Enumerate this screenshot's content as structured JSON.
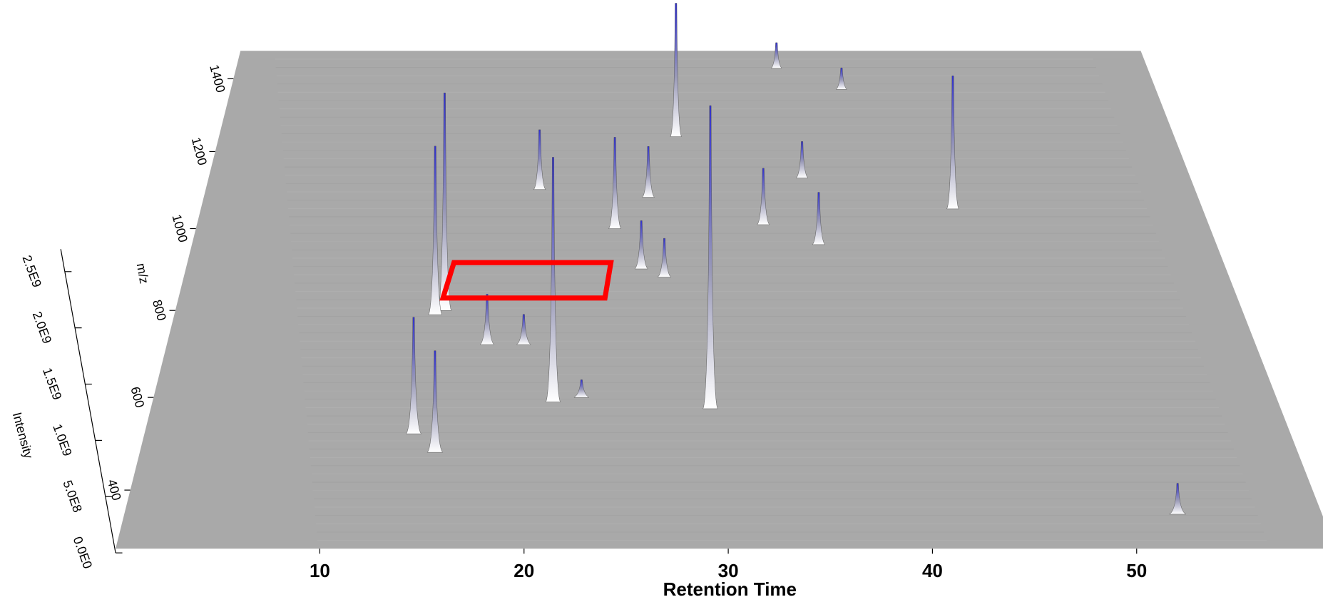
{
  "chart_data": {
    "type": "peaks3d",
    "x_label": "Retention Time",
    "y_label": "m/z",
    "z_label": "Intensity",
    "color": "#2f2fd0",
    "xlim": [
      0,
      59
    ],
    "xticks": [
      10,
      20,
      30,
      40,
      50
    ],
    "ylim": [
      280,
      1480
    ],
    "yticks": [
      400,
      600,
      800,
      1000,
      1200,
      1400
    ],
    "zlim": [
      0,
      2700000000
    ],
    "zticks": [
      {
        "value": 0,
        "label": "0.0E0"
      },
      {
        "value": 500000000,
        "label": "5.0E8"
      },
      {
        "value": 1000000000,
        "label": "1.0E9"
      },
      {
        "value": 1500000000,
        "label": "1.5E9"
      },
      {
        "value": 2000000000,
        "label": "2.0E9"
      },
      {
        "value": 2500000000,
        "label": "2.5E9"
      }
    ],
    "x": [
      28.3,
      29.5,
      21.2,
      15.0,
      14.5,
      14.0,
      15.2,
      44.5,
      24.5,
      26.0,
      27.3,
      36.3,
      35.8,
      35.0,
      39.0,
      33.2,
      26.5,
      20.0,
      52.5,
      22.7,
      17.5,
      19.5
    ],
    "y": [
      1240,
      575,
      590,
      800,
      790,
      520,
      480,
      1050,
      1000,
      900,
      880,
      960,
      1130,
      1430,
      1370,
      1010,
      1080,
      1100,
      350,
      600,
      720,
      720
    ],
    "values": [
      1500000000,
      2900000000,
      2350000000,
      2200000000,
      1700000000,
      1100000000,
      950000000,
      1430000000,
      970000000,
      500000000,
      400000000,
      550000000,
      400000000,
      300000000,
      250000000,
      600000000,
      550000000,
      650000000,
      280000000,
      170000000,
      500000000,
      300000000
    ]
  }
}
